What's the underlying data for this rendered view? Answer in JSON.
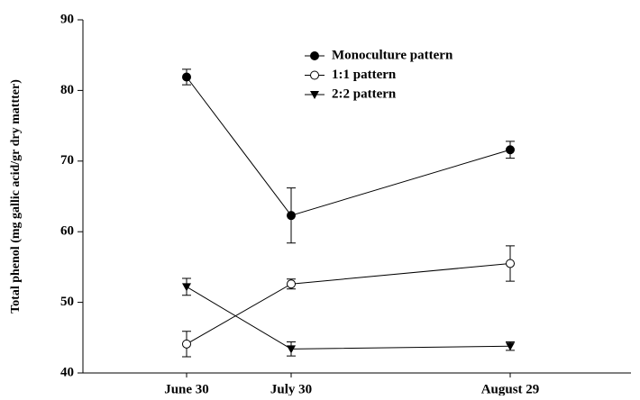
{
  "chart_data": {
    "type": "line",
    "y_label": "Total phenol (mg gallic acid/gr dry mattter)",
    "categories": [
      "June 30",
      "July 30",
      "August 29"
    ],
    "series": [
      {
        "name": "Monoculture pattern",
        "color": "#000000",
        "marker": "filled-circle",
        "values": [
          81.9,
          62.3,
          71.6
        ],
        "errors": [
          1.1,
          3.9,
          1.2
        ]
      },
      {
        "name": "1:1 pattern",
        "color": "#000000",
        "marker": "open-circle",
        "values": [
          44.1,
          52.6,
          55.5
        ],
        "errors": [
          1.8,
          0.7,
          2.5
        ]
      },
      {
        "name": "2:2 pattern",
        "color": "#000000",
        "marker": "triangle-down",
        "values": [
          52.2,
          43.4,
          43.8
        ],
        "errors": [
          1.2,
          1.0,
          0.6
        ]
      }
    ],
    "ylim": [
      40,
      90
    ],
    "yticks": [
      40,
      50,
      60,
      70,
      80,
      90
    ],
    "grid": false,
    "legend": "top"
  }
}
